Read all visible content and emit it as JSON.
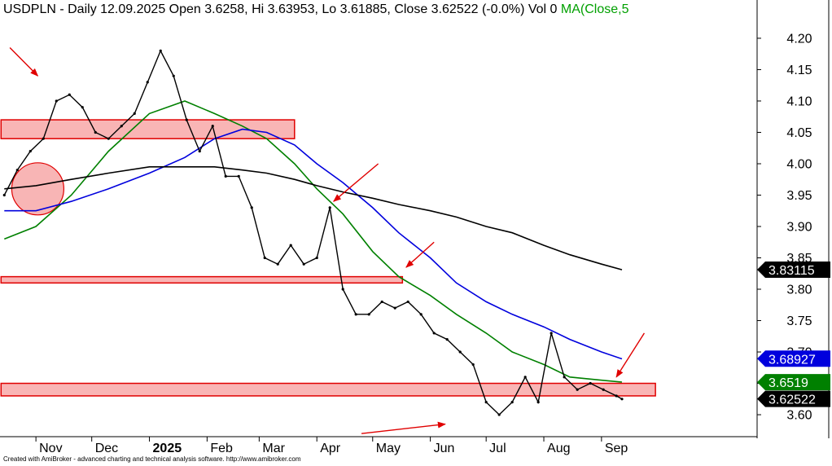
{
  "header": {
    "ticker": "USDPLN",
    "info": " - Daily 12.09.2025 Open 3.6258, Hi 3.63953, Lo 3.61885, Close 3.62522 (-0.0%) Vol 0 ",
    "ma_label": "MA(Close,5"
  },
  "footer": {
    "credit": "Created with AmiBroker - advanced charting and technical analysis software. http://www.amibroker.com"
  },
  "colors": {
    "price": "#000000",
    "ma_short": "#008000",
    "ma_mid": "#0000dd",
    "ma_long": "#000000",
    "zone_fill": "#f9b5b5",
    "zone_stroke": "#e00000",
    "arrow": "#e00000"
  },
  "chart_data": {
    "type": "line",
    "title": "USDPLN - Daily 12.09.2025 Open 3.6258, Hi 3.63953, Lo 3.61885, Close 3.62522 (-0.0%) Vol 0",
    "ylim": [
      3.565,
      4.235
    ],
    "grid": false,
    "x_months": [
      "Nov",
      "Dec",
      "2025",
      "Feb",
      "Mar",
      "Apr",
      "May",
      "Jun",
      "Jul",
      "Aug",
      "Sep"
    ],
    "y_ticks": [
      3.6,
      3.65,
      3.7,
      3.75,
      3.8,
      3.85,
      3.9,
      3.95,
      4.0,
      4.05,
      4.1,
      4.15,
      4.2
    ],
    "y_tick_labels": [
      "3.60",
      "3.65",
      "3.70",
      "3.75",
      "3.80",
      "3.85",
      "3.90",
      "3.95",
      "4.00",
      "4.05",
      "4.10",
      "4.15",
      "4.20"
    ],
    "axis_markers": [
      {
        "text": "3.83115",
        "value": 3.83115,
        "color": "#000000"
      },
      {
        "text": "3.68927",
        "value": 3.68927,
        "color": "#0000dd"
      },
      {
        "text": "3.6519",
        "value": 3.6519,
        "color": "#008000"
      },
      {
        "text": "3.62522",
        "value": 3.62522,
        "color": "#000000"
      }
    ],
    "series": [
      {
        "role": "price",
        "x": [
          "2024-10-15",
          "2024-10-22",
          "2024-10-29",
          "2024-11-05",
          "2024-11-12",
          "2024-11-19",
          "2024-11-26",
          "2024-12-03",
          "2024-12-10",
          "2024-12-17",
          "2024-12-24",
          "2024-12-31",
          "2025-01-07",
          "2025-01-14",
          "2025-01-21",
          "2025-01-28",
          "2025-02-04",
          "2025-02-11",
          "2025-02-18",
          "2025-02-25",
          "2025-03-04",
          "2025-03-11",
          "2025-03-18",
          "2025-03-25",
          "2025-04-01",
          "2025-04-08",
          "2025-04-15",
          "2025-04-22",
          "2025-04-29",
          "2025-05-06",
          "2025-05-13",
          "2025-05-20",
          "2025-05-27",
          "2025-06-03",
          "2025-06-10",
          "2025-06-17",
          "2025-06-24",
          "2025-07-01",
          "2025-07-08",
          "2025-07-15",
          "2025-07-22",
          "2025-07-29",
          "2025-08-05",
          "2025-08-12",
          "2025-08-19",
          "2025-08-26",
          "2025-09-02",
          "2025-09-09",
          "2025-09-12"
        ],
        "values": [
          3.95,
          3.99,
          4.02,
          4.04,
          4.1,
          4.11,
          4.09,
          4.05,
          4.04,
          4.06,
          4.08,
          4.13,
          4.18,
          4.14,
          4.07,
          4.02,
          4.06,
          3.98,
          3.98,
          3.93,
          3.85,
          3.84,
          3.87,
          3.84,
          3.85,
          3.93,
          3.8,
          3.76,
          3.76,
          3.78,
          3.77,
          3.78,
          3.76,
          3.73,
          3.72,
          3.7,
          3.68,
          3.62,
          3.6,
          3.62,
          3.66,
          3.62,
          3.73,
          3.66,
          3.64,
          3.65,
          3.64,
          3.63,
          3.625
        ]
      },
      {
        "role": "ma_short",
        "x": [
          "2024-10-15",
          "2024-11-01",
          "2024-11-20",
          "2024-12-10",
          "2025-01-01",
          "2025-01-20",
          "2025-02-05",
          "2025-02-20",
          "2025-03-05",
          "2025-03-20",
          "2025-04-01",
          "2025-04-15",
          "2025-05-01",
          "2025-05-15",
          "2025-06-01",
          "2025-06-15",
          "2025-07-01",
          "2025-07-15",
          "2025-08-01",
          "2025-08-15",
          "2025-09-01",
          "2025-09-12"
        ],
        "values": [
          3.88,
          3.9,
          3.95,
          4.02,
          4.08,
          4.1,
          4.08,
          4.06,
          4.04,
          4.0,
          3.96,
          3.92,
          3.86,
          3.82,
          3.79,
          3.76,
          3.73,
          3.7,
          3.68,
          3.66,
          3.655,
          3.652
        ]
      },
      {
        "role": "ma_mid",
        "x": [
          "2024-10-15",
          "2024-11-01",
          "2024-11-20",
          "2024-12-10",
          "2025-01-01",
          "2025-01-20",
          "2025-02-05",
          "2025-02-20",
          "2025-03-05",
          "2025-03-20",
          "2025-04-01",
          "2025-04-15",
          "2025-05-01",
          "2025-05-15",
          "2025-06-01",
          "2025-06-15",
          "2025-07-01",
          "2025-07-15",
          "2025-08-01",
          "2025-08-15",
          "2025-09-01",
          "2025-09-12"
        ],
        "values": [
          3.925,
          3.925,
          3.94,
          3.96,
          3.985,
          4.01,
          4.04,
          4.055,
          4.05,
          4.03,
          4.0,
          3.97,
          3.93,
          3.89,
          3.85,
          3.81,
          3.78,
          3.76,
          3.74,
          3.72,
          3.7,
          3.689
        ]
      },
      {
        "role": "ma_long",
        "x": [
          "2024-10-15",
          "2024-11-01",
          "2024-11-20",
          "2024-12-10",
          "2025-01-01",
          "2025-01-20",
          "2025-02-05",
          "2025-02-20",
          "2025-03-05",
          "2025-03-20",
          "2025-04-01",
          "2025-04-15",
          "2025-05-01",
          "2025-05-15",
          "2025-06-01",
          "2025-06-15",
          "2025-07-01",
          "2025-07-15",
          "2025-08-01",
          "2025-08-15",
          "2025-09-01",
          "2025-09-12"
        ],
        "values": [
          3.96,
          3.965,
          3.975,
          3.985,
          3.995,
          3.995,
          3.995,
          3.99,
          3.985,
          3.975,
          3.965,
          3.955,
          3.945,
          3.935,
          3.925,
          3.915,
          3.9,
          3.89,
          3.87,
          3.855,
          3.84,
          3.831
        ]
      }
    ],
    "zones": [
      {
        "y_low": 4.04,
        "y_high": 4.07,
        "x_start": "2024-10-15",
        "x_end": "2025-03-20"
      },
      {
        "y_low": 3.81,
        "y_high": 3.82,
        "x_start": "2024-10-15",
        "x_end": "2025-05-17"
      },
      {
        "y_low": 3.63,
        "y_high": 3.65,
        "x_start": "2024-10-15",
        "x_end": "2025-09-30"
      }
    ],
    "circle": {
      "x": "2024-11-02",
      "y": 3.96
    }
  }
}
